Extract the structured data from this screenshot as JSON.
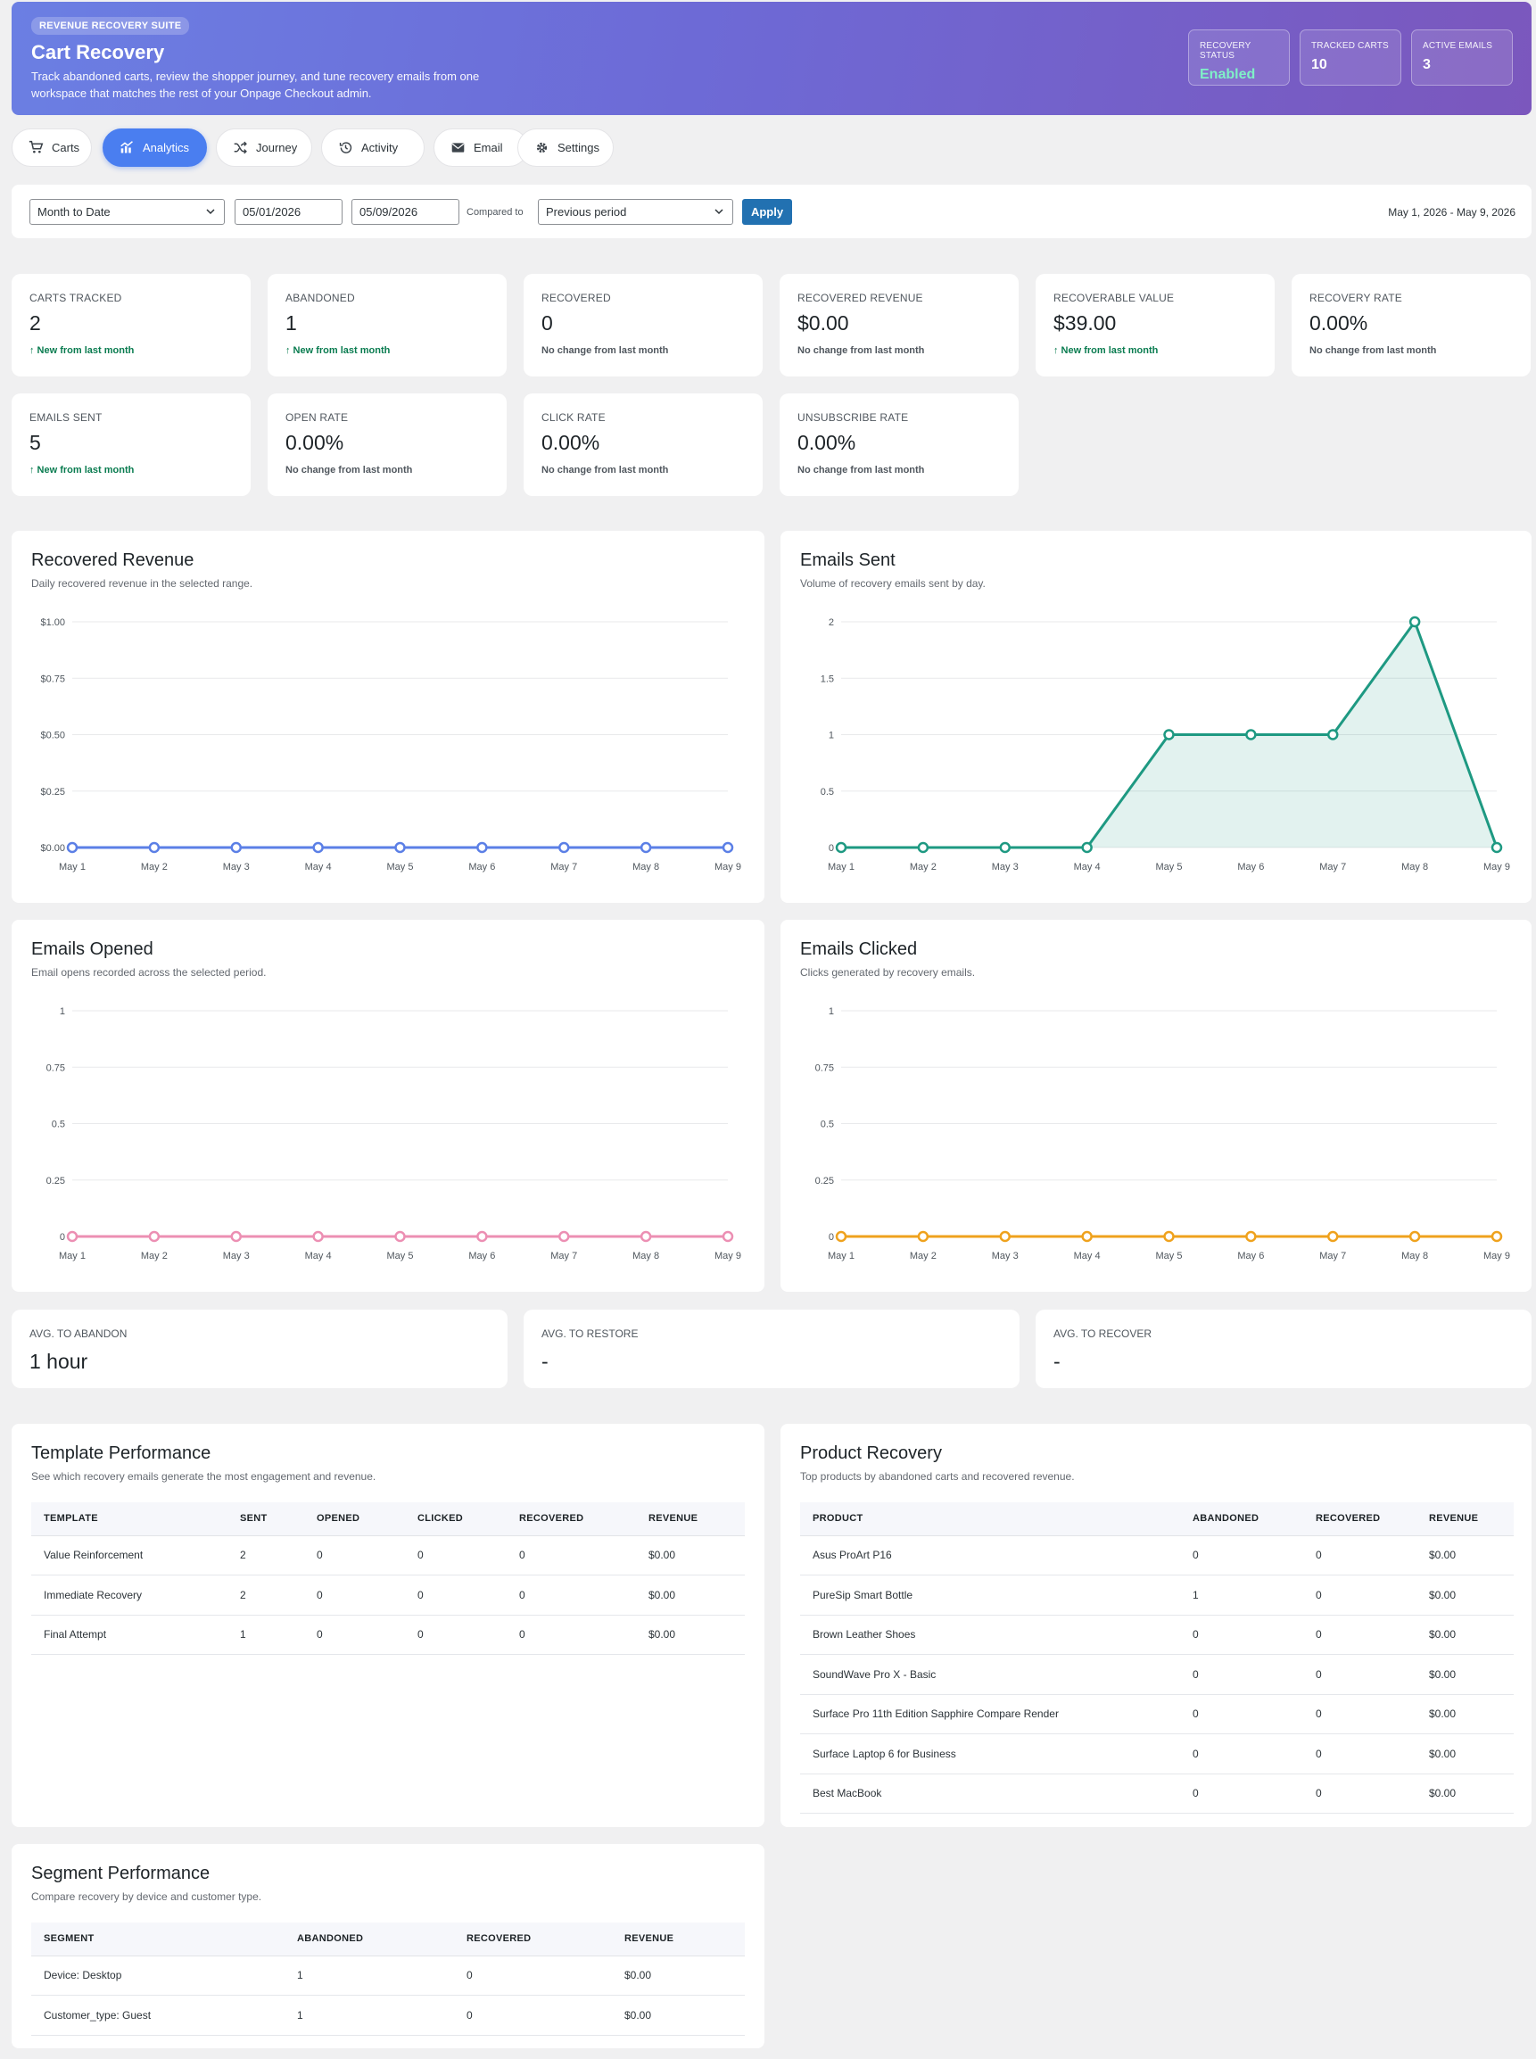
{
  "header": {
    "eyebrow": "REVENUE RECOVERY SUITE",
    "title": "Cart Recovery",
    "description": "Track abandoned carts, review the shopper journey, and tune recovery emails from one workspace that matches the rest of your Onpage Checkout admin.",
    "stats": [
      {
        "label": "RECOVERY STATUS",
        "value": "Enabled"
      },
      {
        "label": "TRACKED CARTS",
        "value": "10"
      },
      {
        "label": "ACTIVE EMAILS",
        "value": "3"
      }
    ]
  },
  "tabs": [
    {
      "label": "Carts",
      "icon": "cart-icon"
    },
    {
      "label": "Analytics",
      "icon": "chart-icon",
      "active": true
    },
    {
      "label": "Journey",
      "icon": "shuffle-icon"
    },
    {
      "label": "Activity",
      "icon": "history-icon"
    },
    {
      "label": "Email",
      "icon": "mail-icon"
    },
    {
      "label": "Settings",
      "icon": "gear-icon"
    }
  ],
  "filters": {
    "preset": "Month to Date",
    "start_date": "05/01/2026",
    "end_date": "05/09/2026",
    "compared_label": "Compared to",
    "compare": "Previous period",
    "apply_label": "Apply",
    "range_text": "May 1, 2026 - May 9, 2026"
  },
  "kpis": [
    {
      "label": "CARTS TRACKED",
      "value": "2",
      "delta": "↑ New from last month",
      "trend": "up"
    },
    {
      "label": "ABANDONED",
      "value": "1",
      "delta": "↑ New from last month",
      "trend": "up"
    },
    {
      "label": "RECOVERED",
      "value": "0",
      "delta": "No change from last month",
      "trend": "flat"
    },
    {
      "label": "RECOVERED REVENUE",
      "value": "$0.00",
      "delta": "No change from last month",
      "trend": "flat"
    },
    {
      "label": "RECOVERABLE VALUE",
      "value": "$39.00",
      "delta": "↑ New from last month",
      "trend": "up"
    },
    {
      "label": "RECOVERY RATE",
      "value": "0.00%",
      "delta": "No change from last month",
      "trend": "flat"
    },
    {
      "label": "EMAILS SENT",
      "value": "5",
      "delta": "↑ New from last month",
      "trend": "up"
    },
    {
      "label": "OPEN RATE",
      "value": "0.00%",
      "delta": "No change from last month",
      "trend": "flat"
    },
    {
      "label": "CLICK RATE",
      "value": "0.00%",
      "delta": "No change from last month",
      "trend": "flat"
    },
    {
      "label": "UNSUBSCRIBE RATE",
      "value": "0.00%",
      "delta": "No change from last month",
      "trend": "flat"
    }
  ],
  "chart_data": [
    {
      "type": "line",
      "title": "Recovered Revenue",
      "subtitle": "Daily recovered revenue in the selected range.",
      "x": [
        "May 1",
        "May 2",
        "May 3",
        "May 4",
        "May 5",
        "May 6",
        "May 7",
        "May 8",
        "May 9"
      ],
      "series": [
        {
          "values": [
            0,
            0,
            0,
            0,
            0,
            0,
            0,
            0,
            0
          ]
        }
      ],
      "yticks": [
        "$0.00",
        "$0.25",
        "$0.50",
        "$0.75",
        "$1.00"
      ],
      "ylim": [
        0,
        1
      ],
      "color": "#5b7fe6",
      "fill": false
    },
    {
      "type": "area",
      "title": "Emails Sent",
      "subtitle": "Volume of recovery emails sent by day.",
      "x": [
        "May 1",
        "May 2",
        "May 3",
        "May 4",
        "May 5",
        "May 6",
        "May 7",
        "May 8",
        "May 9"
      ],
      "series": [
        {
          "values": [
            0,
            0,
            0,
            0,
            1,
            1,
            1,
            2,
            0
          ]
        }
      ],
      "yticks": [
        "0",
        "0.5",
        "1",
        "1.5",
        "2"
      ],
      "ylim": [
        0,
        2
      ],
      "color": "#1e9982",
      "fill": true
    },
    {
      "type": "line",
      "title": "Emails Opened",
      "subtitle": "Email opens recorded across the selected period.",
      "x": [
        "May 1",
        "May 2",
        "May 3",
        "May 4",
        "May 5",
        "May 6",
        "May 7",
        "May 8",
        "May 9"
      ],
      "series": [
        {
          "values": [
            0,
            0,
            0,
            0,
            0,
            0,
            0,
            0,
            0
          ]
        }
      ],
      "yticks": [
        "0",
        "0.25",
        "0.5",
        "0.75",
        "1"
      ],
      "ylim": [
        0,
        1
      ],
      "color": "#ec8fb3",
      "fill": false
    },
    {
      "type": "line",
      "title": "Emails Clicked",
      "subtitle": "Clicks generated by recovery emails.",
      "x": [
        "May 1",
        "May 2",
        "May 3",
        "May 4",
        "May 5",
        "May 6",
        "May 7",
        "May 8",
        "May 9"
      ],
      "series": [
        {
          "values": [
            0,
            0,
            0,
            0,
            0,
            0,
            0,
            0,
            0
          ]
        }
      ],
      "yticks": [
        "0",
        "0.25",
        "0.5",
        "0.75",
        "1"
      ],
      "ylim": [
        0,
        1
      ],
      "color": "#efa21d",
      "fill": false
    }
  ],
  "averages": [
    {
      "label": "AVG. TO ABANDON",
      "value": "1 hour"
    },
    {
      "label": "AVG. TO RESTORE",
      "value": "-"
    },
    {
      "label": "AVG. TO RECOVER",
      "value": "-"
    }
  ],
  "template_performance": {
    "title": "Template Performance",
    "subtitle": "See which recovery emails generate the most engagement and revenue.",
    "columns": [
      "TEMPLATE",
      "SENT",
      "OPENED",
      "CLICKED",
      "RECOVERED",
      "REVENUE"
    ],
    "rows": [
      [
        "Value Reinforcement",
        "2",
        "0",
        "0",
        "0",
        "$0.00"
      ],
      [
        "Immediate Recovery",
        "2",
        "0",
        "0",
        "0",
        "$0.00"
      ],
      [
        "Final Attempt",
        "1",
        "0",
        "0",
        "0",
        "$0.00"
      ]
    ]
  },
  "product_recovery": {
    "title": "Product Recovery",
    "subtitle": "Top products by abandoned carts and recovered revenue.",
    "columns": [
      "PRODUCT",
      "ABANDONED",
      "RECOVERED",
      "REVENUE"
    ],
    "rows": [
      [
        "Asus ProArt P16",
        "0",
        "0",
        "$0.00"
      ],
      [
        "PureSip Smart Bottle",
        "1",
        "0",
        "$0.00"
      ],
      [
        "Brown Leather Shoes",
        "0",
        "0",
        "$0.00"
      ],
      [
        "SoundWave Pro X - Basic",
        "0",
        "0",
        "$0.00"
      ],
      [
        "Surface Pro 11th Edition Sapphire Compare Render",
        "0",
        "0",
        "$0.00"
      ],
      [
        "Surface Laptop 6 for Business",
        "0",
        "0",
        "$0.00"
      ],
      [
        "Best MacBook",
        "0",
        "0",
        "$0.00"
      ]
    ]
  },
  "segment_performance": {
    "title": "Segment Performance",
    "subtitle": "Compare recovery by device and customer type.",
    "columns": [
      "SEGMENT",
      "ABANDONED",
      "RECOVERED",
      "REVENUE"
    ],
    "rows": [
      [
        "Device: Desktop",
        "1",
        "0",
        "$0.00"
      ],
      [
        "Customer_type: Guest",
        "1",
        "0",
        "$0.00"
      ]
    ]
  }
}
